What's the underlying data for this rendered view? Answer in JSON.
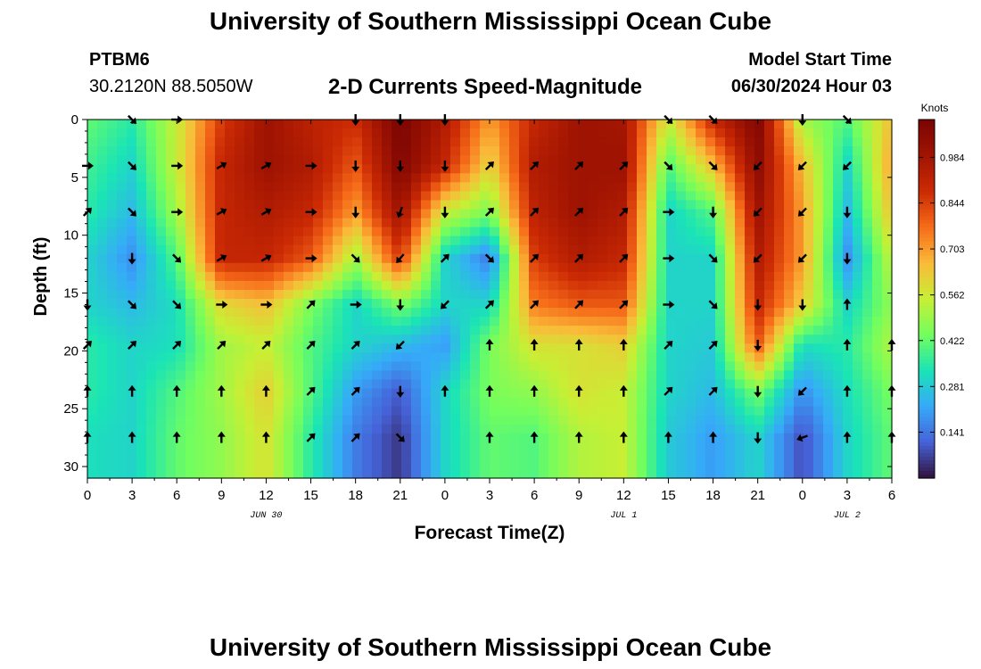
{
  "header": {
    "title": "University of Southern Mississippi Ocean Cube",
    "station_id": "PTBM6",
    "station_coords": "30.2120N  88.5050W",
    "model_start_label": "Model Start Time",
    "model_start_value": "06/30/2024 Hour 03"
  },
  "footer": {
    "title": "University of Southern Mississippi Ocean Cube"
  },
  "colors": {
    "low": "#30123b",
    "mid": "#a4fc3c",
    "high": "#7a0403"
  },
  "chart_data": {
    "type": "heatmap",
    "title": "2-D Currents Speed-Magnitude",
    "xlabel": "Forecast Time(Z)",
    "ylabel": "Depth (ft)",
    "x_tick_labels": [
      "0",
      "3",
      "6",
      "9",
      "12",
      "15",
      "18",
      "21",
      "0",
      "3",
      "6",
      "9",
      "12",
      "15",
      "18",
      "21",
      "0",
      "3",
      "6"
    ],
    "date_labels": [
      {
        "text": "JUN 30",
        "x_index": 4
      },
      {
        "text": "JUL 1",
        "x_index": 12
      },
      {
        "text": "JUL 2",
        "x_index": 17
      }
    ],
    "y_ticks": [
      0,
      5,
      10,
      15,
      20,
      25,
      30
    ],
    "ylim": [
      0,
      31
    ],
    "colorbar": {
      "label": "Knots",
      "ticks": [
        0.984,
        0.844,
        0.703,
        0.562,
        0.422,
        0.281,
        0.141
      ],
      "range": [
        0.0,
        1.1
      ]
    },
    "depths_ft": [
      0,
      4,
      8,
      12,
      16,
      19.5,
      23.5,
      27.5
    ],
    "speed_knots": [
      [
        0.42,
        0.35,
        0.55,
        0.85,
        1.0,
        0.92,
        0.88,
        1.1,
        0.95,
        0.7,
        0.9,
        1.0,
        0.98,
        0.55,
        0.9,
        1.08,
        0.5,
        0.4,
        0.65
      ],
      [
        0.38,
        0.3,
        0.55,
        0.9,
        1.0,
        0.95,
        0.8,
        1.08,
        0.9,
        0.6,
        0.95,
        1.0,
        1.0,
        0.4,
        0.65,
        1.05,
        0.65,
        0.3,
        0.7
      ],
      [
        0.35,
        0.25,
        0.5,
        0.9,
        0.95,
        0.9,
        0.7,
        1.0,
        0.55,
        0.45,
        0.92,
        1.0,
        0.95,
        0.3,
        0.4,
        1.0,
        0.7,
        0.25,
        0.65
      ],
      [
        0.3,
        0.18,
        0.4,
        0.9,
        0.9,
        0.8,
        0.5,
        0.85,
        0.3,
        0.15,
        0.85,
        0.95,
        0.9,
        0.3,
        0.3,
        0.95,
        0.7,
        0.18,
        0.55
      ],
      [
        0.3,
        0.25,
        0.32,
        0.6,
        0.65,
        0.45,
        0.3,
        0.45,
        0.3,
        0.3,
        0.75,
        0.8,
        0.8,
        0.3,
        0.3,
        0.9,
        0.62,
        0.3,
        0.48
      ],
      [
        0.35,
        0.3,
        0.32,
        0.5,
        0.55,
        0.4,
        0.3,
        0.25,
        0.2,
        0.45,
        0.58,
        0.58,
        0.62,
        0.3,
        0.28,
        0.8,
        0.32,
        0.35,
        0.52
      ],
      [
        0.35,
        0.3,
        0.4,
        0.5,
        0.62,
        0.4,
        0.2,
        0.1,
        0.3,
        0.45,
        0.48,
        0.58,
        0.55,
        0.3,
        0.25,
        0.45,
        0.18,
        0.32,
        0.45
      ],
      [
        0.32,
        0.3,
        0.42,
        0.48,
        0.58,
        0.35,
        0.15,
        0.05,
        0.3,
        0.42,
        0.4,
        0.52,
        0.55,
        0.28,
        0.2,
        0.3,
        0.08,
        0.3,
        0.42
      ]
    ],
    "direction_deg": [
      [
        null,
        135,
        90,
        null,
        null,
        null,
        180,
        180,
        180,
        null,
        null,
        null,
        null,
        135,
        135,
        null,
        180,
        135,
        null
      ],
      [
        90,
        135,
        90,
        60,
        60,
        90,
        180,
        180,
        180,
        45,
        45,
        45,
        45,
        135,
        135,
        225,
        225,
        225,
        null
      ],
      [
        45,
        135,
        90,
        60,
        60,
        90,
        180,
        200,
        180,
        45,
        45,
        45,
        45,
        90,
        180,
        225,
        225,
        180,
        null
      ],
      [
        null,
        180,
        135,
        60,
        60,
        90,
        135,
        220,
        45,
        135,
        45,
        45,
        45,
        90,
        135,
        225,
        225,
        180,
        null
      ],
      [
        180,
        135,
        135,
        90,
        90,
        45,
        90,
        180,
        225,
        45,
        45,
        45,
        45,
        90,
        135,
        180,
        180,
        0,
        null
      ],
      [
        45,
        45,
        45,
        45,
        45,
        45,
        45,
        225,
        null,
        0,
        0,
        0,
        0,
        45,
        45,
        180,
        null,
        0,
        0
      ],
      [
        0,
        0,
        0,
        0,
        0,
        45,
        45,
        180,
        0,
        0,
        0,
        0,
        0,
        45,
        45,
        180,
        225,
        0,
        0
      ],
      [
        0,
        0,
        0,
        0,
        0,
        45,
        45,
        135,
        null,
        0,
        0,
        0,
        0,
        0,
        0,
        180,
        250,
        0,
        0
      ]
    ]
  }
}
